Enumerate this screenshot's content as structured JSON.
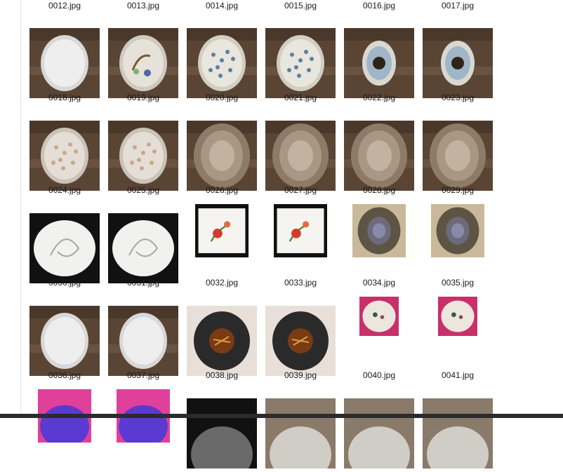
{
  "explorer": {
    "rows": [
      [
        "0012.jpg",
        "0013.jpg",
        "0014.jpg",
        "0015.jpg",
        "0016.jpg",
        "0017.jpg"
      ],
      [
        "0018.jpg",
        "0019.jpg",
        "0020.jpg",
        "0021.jpg",
        "0022.jpg",
        "0023.jpg"
      ],
      [
        "0024.jpg",
        "0025.jpg",
        "0026.jpg",
        "0027.jpg",
        "0028.jpg",
        "0029.jpg"
      ],
      [
        "0030.jpg",
        "0031.jpg",
        "0032.jpg",
        "0033.jpg",
        "0034.jpg",
        "0035.jpg"
      ],
      [
        "0036.jpg",
        "0037.jpg",
        "0038.jpg",
        "0039.jpg",
        "0040.jpg",
        "0041.jpg"
      ],
      [
        "",
        "",
        "",
        "",
        "",
        ""
      ]
    ]
  },
  "colors": {
    "background": "#ffffff",
    "filename_text": "#1a1a1a",
    "taskbar": "#2b2b2b"
  }
}
